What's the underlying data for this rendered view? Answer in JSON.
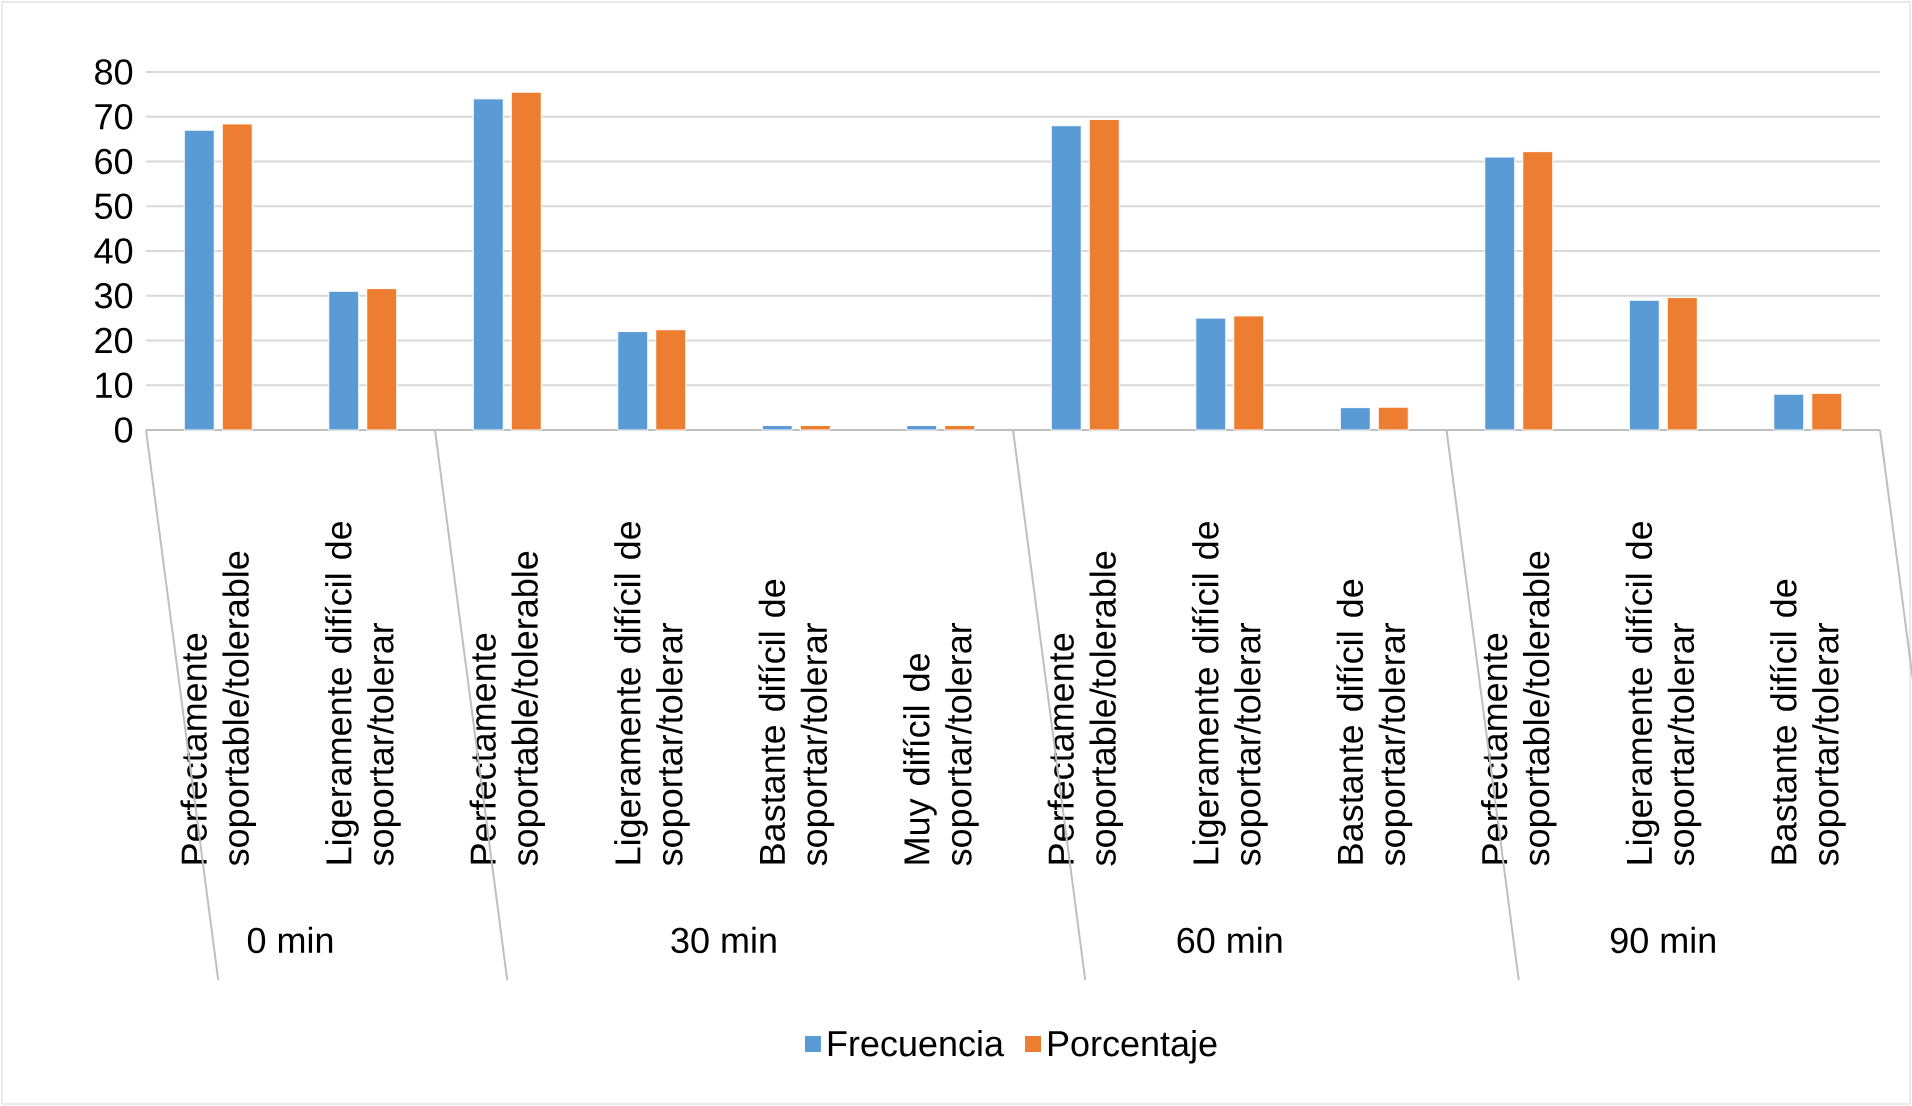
{
  "chart_data": {
    "type": "bar",
    "categories": [
      "Perfectamente soportable/tolerable",
      "Ligeramente difícil de soportar/tolerar",
      "Perfectamente soportable/tolerable",
      "Ligeramente difícil de soportar/tolerar",
      "Bastante difícil de soportar/tolerar",
      "Muy difícil de soportar/tolerar",
      "Perfectamente soportable/tolerable",
      "Ligeramente difícil de soportar/tolerar",
      "Bastante difícil de soportar/tolerar",
      "Perfectamente soportable/tolerable",
      "Ligeramente difícil de soportar/tolerar",
      "Bastante difícil de soportar/tolerar"
    ],
    "series": [
      {
        "name": "Frecuencia",
        "color": "#5b9bd5",
        "values": [
          67,
          31,
          74,
          22,
          1,
          1,
          68,
          25,
          5,
          61,
          29,
          8
        ]
      },
      {
        "name": "Porcentaje",
        "color": "#ed7d31",
        "values": [
          68.4,
          31.6,
          75.5,
          22.4,
          1.0,
          1.0,
          69.4,
          25.5,
          5.1,
          62.2,
          29.6,
          8.2
        ]
      }
    ],
    "annotations": [
      "0 min",
      "30 min",
      "60 min",
      "90 min"
    ],
    "ylim": [
      0,
      80
    ],
    "yticks": [
      0,
      10,
      20,
      30,
      40,
      50,
      60,
      70,
      80
    ],
    "grid": "y",
    "legend": "bottom"
  }
}
